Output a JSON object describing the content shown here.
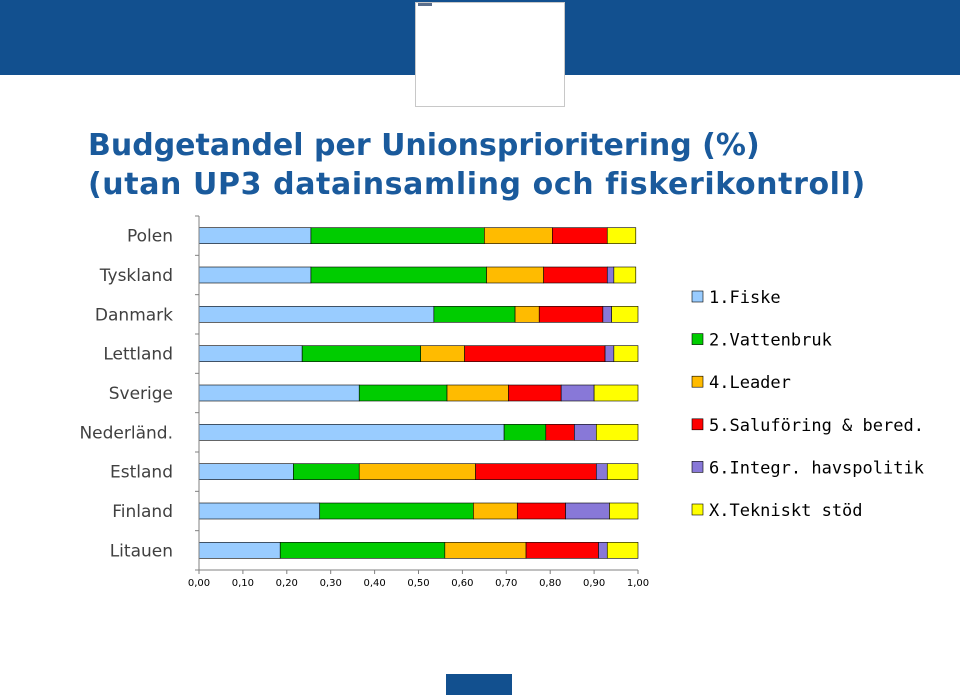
{
  "page": {
    "title_line1": "Budgetandel per Unionsprioritering (%)",
    "title_line2": "(utan UP3 datainsamling och fiskerikontroll)",
    "header_color": "#12508f",
    "title_color": "#1a5a9c"
  },
  "chart_data": {
    "type": "bar",
    "orientation": "horizontal",
    "stacked": true,
    "categories": [
      "Polen",
      "Tyskland",
      "Danmark",
      "Lettland",
      "Sverige",
      "Nederländ.",
      "Estland",
      "Finland",
      "Litauen"
    ],
    "series": [
      {
        "name": "1.Fiske",
        "color": "#99ccff",
        "values": [
          0.255,
          0.255,
          0.535,
          0.235,
          0.365,
          0.695,
          0.215,
          0.275,
          0.185
        ]
      },
      {
        "name": "2.Vattenbruk",
        "color": "#00cc00",
        "values": [
          0.395,
          0.4,
          0.185,
          0.27,
          0.2,
          0.095,
          0.15,
          0.35,
          0.375
        ]
      },
      {
        "name": "4.Leader",
        "color": "#ffbb00",
        "values": [
          0.155,
          0.13,
          0.055,
          0.1,
          0.14,
          0.0,
          0.265,
          0.1,
          0.185
        ]
      },
      {
        "name": "5.Saluföring & bered.",
        "color": "#ff0000",
        "values": [
          0.125,
          0.145,
          0.145,
          0.32,
          0.12,
          0.065,
          0.275,
          0.11,
          0.165
        ]
      },
      {
        "name": "6.Integr. havspolitik",
        "color": "#8878d8",
        "values": [
          0.0,
          0.015,
          0.02,
          0.02,
          0.075,
          0.05,
          0.025,
          0.1,
          0.02
        ]
      },
      {
        "name": "X.Tekniskt stöd",
        "color": "#ffff00",
        "values": [
          0.065,
          0.05,
          0.06,
          0.055,
          0.1,
          0.095,
          0.07,
          0.065,
          0.07
        ]
      }
    ],
    "x_ticks": [
      "0,00",
      "0,10",
      "0,20",
      "0,30",
      "0,40",
      "0,50",
      "0,60",
      "0,70",
      "0,80",
      "0,90",
      "1,00"
    ],
    "xlim": [
      0,
      1
    ],
    "xlabel": "",
    "ylabel": "",
    "grid": false,
    "legend_position": "right"
  }
}
